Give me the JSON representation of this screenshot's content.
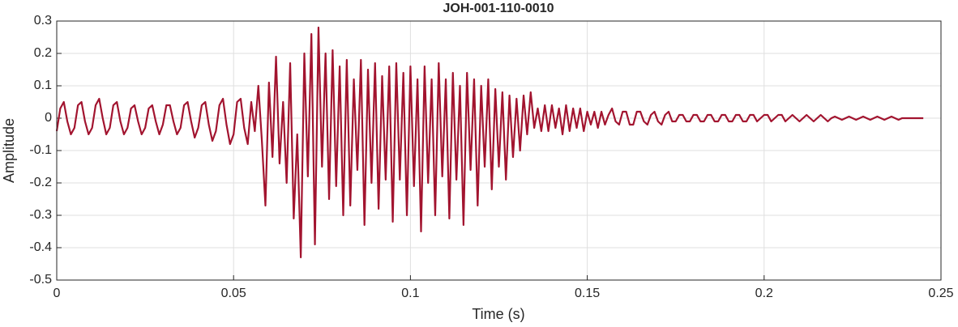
{
  "chart_data": {
    "type": "line",
    "title": "JOH-001-110-0010",
    "xlabel": "Time (s)",
    "ylabel": "Amplitude",
    "xlim": [
      0,
      0.25
    ],
    "ylim": [
      -0.5,
      0.3
    ],
    "xticks": [
      0,
      0.05,
      0.1,
      0.15,
      0.2,
      0.25
    ],
    "yticks": [
      -0.5,
      -0.4,
      -0.3,
      -0.2,
      -0.1,
      0,
      0.1,
      0.2,
      0.3
    ],
    "grid": true,
    "series": [
      {
        "name": "Amplitude",
        "color": "#a2142f",
        "x": [
          0,
          0.001,
          0.002,
          0.003,
          0.004,
          0.005,
          0.006,
          0.007,
          0.008,
          0.009,
          0.01,
          0.011,
          0.012,
          0.013,
          0.014,
          0.015,
          0.016,
          0.017,
          0.018,
          0.019,
          0.02,
          0.021,
          0.022,
          0.023,
          0.024,
          0.025,
          0.026,
          0.027,
          0.028,
          0.029,
          0.03,
          0.031,
          0.032,
          0.033,
          0.034,
          0.035,
          0.036,
          0.037,
          0.038,
          0.039,
          0.04,
          0.041,
          0.042,
          0.043,
          0.044,
          0.045,
          0.046,
          0.047,
          0.048,
          0.049,
          0.05,
          0.051,
          0.052,
          0.053,
          0.054,
          0.055,
          0.056,
          0.057,
          0.058,
          0.059,
          0.06,
          0.061,
          0.062,
          0.063,
          0.064,
          0.065,
          0.066,
          0.067,
          0.068,
          0.069,
          0.07,
          0.071,
          0.072,
          0.073,
          0.074,
          0.075,
          0.076,
          0.077,
          0.078,
          0.079,
          0.08,
          0.081,
          0.082,
          0.083,
          0.084,
          0.085,
          0.086,
          0.087,
          0.088,
          0.089,
          0.09,
          0.091,
          0.092,
          0.093,
          0.094,
          0.095,
          0.096,
          0.097,
          0.098,
          0.099,
          0.1,
          0.101,
          0.102,
          0.103,
          0.104,
          0.105,
          0.106,
          0.107,
          0.108,
          0.109,
          0.11,
          0.111,
          0.112,
          0.113,
          0.114,
          0.115,
          0.116,
          0.117,
          0.118,
          0.119,
          0.12,
          0.121,
          0.122,
          0.123,
          0.124,
          0.125,
          0.126,
          0.127,
          0.128,
          0.129,
          0.13,
          0.131,
          0.132,
          0.133,
          0.134,
          0.135,
          0.136,
          0.137,
          0.138,
          0.139,
          0.14,
          0.141,
          0.142,
          0.143,
          0.144,
          0.145,
          0.146,
          0.147,
          0.148,
          0.149,
          0.15,
          0.151,
          0.152,
          0.153,
          0.154,
          0.155,
          0.156,
          0.157,
          0.158,
          0.159,
          0.16,
          0.161,
          0.162,
          0.163,
          0.164,
          0.165,
          0.166,
          0.167,
          0.168,
          0.169,
          0.17,
          0.171,
          0.172,
          0.173,
          0.174,
          0.175,
          0.176,
          0.177,
          0.178,
          0.179,
          0.18,
          0.181,
          0.182,
          0.183,
          0.184,
          0.185,
          0.186,
          0.187,
          0.188,
          0.189,
          0.19,
          0.191,
          0.192,
          0.193,
          0.194,
          0.195,
          0.196,
          0.197,
          0.198,
          0.199,
          0.2,
          0.201,
          0.202,
          0.203,
          0.204,
          0.205,
          0.206,
          0.207,
          0.208,
          0.209,
          0.21,
          0.211,
          0.212,
          0.213,
          0.214,
          0.215,
          0.216,
          0.217,
          0.218,
          0.219,
          0.22,
          0.221,
          0.222,
          0.223,
          0.224,
          0.225,
          0.226,
          0.227,
          0.228,
          0.229,
          0.23,
          0.231,
          0.232,
          0.233,
          0.234,
          0.235,
          0.236,
          0.237,
          0.238,
          0.239,
          0.24,
          0.241,
          0.242,
          0.243,
          0.244,
          0.245
        ],
        "values": [
          -0.04,
          0.03,
          0.05,
          -0.01,
          -0.05,
          -0.03,
          0.04,
          0.05,
          -0.01,
          -0.05,
          -0.03,
          0.04,
          0.06,
          0,
          -0.05,
          -0.03,
          0.04,
          0.05,
          -0.01,
          -0.05,
          -0.03,
          0.03,
          0.04,
          -0.01,
          -0.05,
          -0.03,
          0.03,
          0.04,
          -0.01,
          -0.05,
          -0.02,
          0.04,
          0.04,
          -0.01,
          -0.05,
          -0.03,
          0.04,
          0.05,
          -0.01,
          -0.06,
          -0.03,
          0.04,
          0.05,
          -0.02,
          -0.07,
          -0.04,
          0.04,
          0.06,
          -0.02,
          -0.08,
          -0.05,
          0.05,
          0.06,
          -0.03,
          -0.08,
          0.05,
          -0.04,
          0.1,
          -0.07,
          -0.27,
          0.11,
          -0.12,
          0.19,
          -0.14,
          0.05,
          -0.2,
          0.17,
          -0.31,
          -0.05,
          -0.43,
          0.2,
          -0.18,
          0.26,
          -0.39,
          0.28,
          -0.15,
          0.2,
          -0.25,
          0.21,
          -0.21,
          0.16,
          -0.3,
          0.18,
          -0.27,
          0.12,
          -0.16,
          0.18,
          -0.33,
          0.15,
          -0.2,
          0.17,
          -0.28,
          0.13,
          -0.19,
          0.16,
          -0.32,
          0.17,
          -0.19,
          0.14,
          -0.3,
          0.16,
          -0.21,
          0.12,
          -0.35,
          0.16,
          -0.2,
          0.12,
          -0.3,
          0.17,
          -0.18,
          0.12,
          -0.31,
          0.14,
          -0.19,
          0.1,
          -0.33,
          0.14,
          -0.16,
          0.12,
          -0.27,
          0.1,
          -0.15,
          0.12,
          -0.22,
          0.09,
          -0.15,
          0.08,
          -0.19,
          0.07,
          -0.12,
          0.06,
          -0.1,
          0.07,
          -0.05,
          0.08,
          -0.03,
          0.03,
          -0.04,
          0.04,
          -0.04,
          0.04,
          -0.03,
          0.03,
          -0.05,
          0.04,
          -0.04,
          0.03,
          -0.03,
          0.03,
          -0.04,
          0.02,
          -0.02,
          0.02,
          -0.03,
          0.02,
          -0.02,
          0.01,
          0.03,
          -0.01,
          -0.02,
          0.02,
          0.02,
          -0.02,
          -0.02,
          0.02,
          0.02,
          -0.01,
          -0.02,
          0.01,
          0.02,
          -0.01,
          -0.02,
          0.01,
          0.02,
          -0.01,
          -0.01,
          0.01,
          0.01,
          -0.01,
          -0.01,
          0.01,
          0.01,
          -0.01,
          -0.01,
          0.01,
          0.01,
          -0.01,
          -0.01,
          0.01,
          0.01,
          -0.01,
          -0.01,
          0.01,
          0.01,
          -0.01,
          -0.01,
          0.01,
          0.01,
          -0.01,
          0,
          0.01,
          0.01,
          -0.01,
          0,
          0.01,
          0.01,
          -0.01,
          0,
          0.01,
          0,
          -0.01,
          0,
          0.01,
          0,
          -0.01,
          0,
          0.01,
          0,
          -0.01,
          0,
          0.005,
          0,
          -0.005,
          0,
          0.005,
          0,
          -0.005,
          0,
          0.005,
          0,
          -0.005,
          0,
          0.005,
          0,
          -0.005,
          0,
          0.005,
          0,
          -0.005,
          0,
          0,
          0,
          0,
          0,
          0,
          0
        ]
      }
    ]
  }
}
